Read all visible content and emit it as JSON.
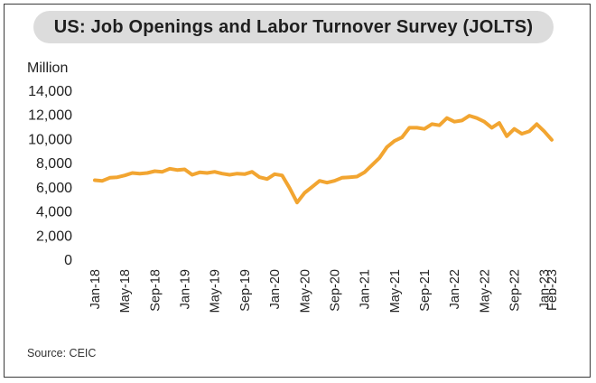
{
  "title": "US: Job Openings and Labor Turnover Survey (JOLTS)",
  "unit_label": "Million",
  "source": "Source: CEIC",
  "colors": {
    "line": "#F2A531",
    "title_bg": "#DCDCDC",
    "text": "#222222"
  },
  "chart_data": {
    "type": "line",
    "title": "US: Job Openings and Labor Turnover Survey (JOLTS)",
    "ylabel": "Million",
    "xlabel": "",
    "ylim": [
      0,
      14000
    ],
    "yticks": [
      0,
      2000,
      4000,
      6000,
      8000,
      10000,
      12000,
      14000
    ],
    "ytick_labels": [
      "0",
      "2,000",
      "4,000",
      "6,000",
      "8,000",
      "10,000",
      "12,000",
      "14,000"
    ],
    "xtick_labels": [
      "Jan-18",
      "May-18",
      "Sep-18",
      "Jan-19",
      "May-19",
      "Sep-19",
      "Jan-20",
      "May-20",
      "Sep-20",
      "Jan-21",
      "May-21",
      "Sep-21",
      "Jan-22",
      "May-22",
      "Sep-22",
      "Jan-23",
      "Feb-23"
    ],
    "grid": false,
    "legend": "none",
    "series": [
      {
        "x": [
          "Jan-18",
          "Feb-18",
          "Mar-18",
          "Apr-18",
          "May-18",
          "Jun-18",
          "Jul-18",
          "Aug-18",
          "Sep-18",
          "Oct-18",
          "Nov-18",
          "Dec-18",
          "Jan-19",
          "Feb-19",
          "Mar-19",
          "Apr-19",
          "May-19",
          "Jun-19",
          "Jul-19",
          "Aug-19",
          "Sep-19",
          "Oct-19",
          "Nov-19",
          "Dec-19",
          "Jan-20",
          "Feb-20",
          "Mar-20",
          "Apr-20",
          "May-20",
          "Jun-20",
          "Jul-20",
          "Aug-20",
          "Sep-20",
          "Oct-20",
          "Nov-20",
          "Dec-20",
          "Jan-21",
          "Feb-21",
          "Mar-21",
          "Apr-21",
          "May-21",
          "Jun-21",
          "Jul-21",
          "Aug-21",
          "Sep-21",
          "Oct-21",
          "Nov-21",
          "Dec-21",
          "Jan-22",
          "Feb-22",
          "Mar-22",
          "Apr-22",
          "May-22",
          "Jun-22",
          "Jul-22",
          "Aug-22",
          "Sep-22",
          "Oct-22",
          "Nov-22",
          "Dec-22",
          "Jan-23",
          "Feb-23"
        ],
        "values": [
          6550,
          6500,
          6750,
          6800,
          6950,
          7150,
          7100,
          7150,
          7300,
          7250,
          7500,
          7400,
          7450,
          7000,
          7200,
          7150,
          7250,
          7100,
          7000,
          7100,
          7050,
          7250,
          6800,
          6650,
          7050,
          6950,
          5900,
          4700,
          5500,
          6000,
          6500,
          6350,
          6500,
          6750,
          6800,
          6850,
          7200,
          7800,
          8400,
          9300,
          9800,
          10100,
          10900,
          10900,
          10800,
          11200,
          11100,
          11700,
          11400,
          11500,
          11900,
          11700,
          11400,
          10900,
          11300,
          10200,
          10800,
          10400,
          10600,
          11200,
          10600,
          9900
        ]
      }
    ]
  }
}
